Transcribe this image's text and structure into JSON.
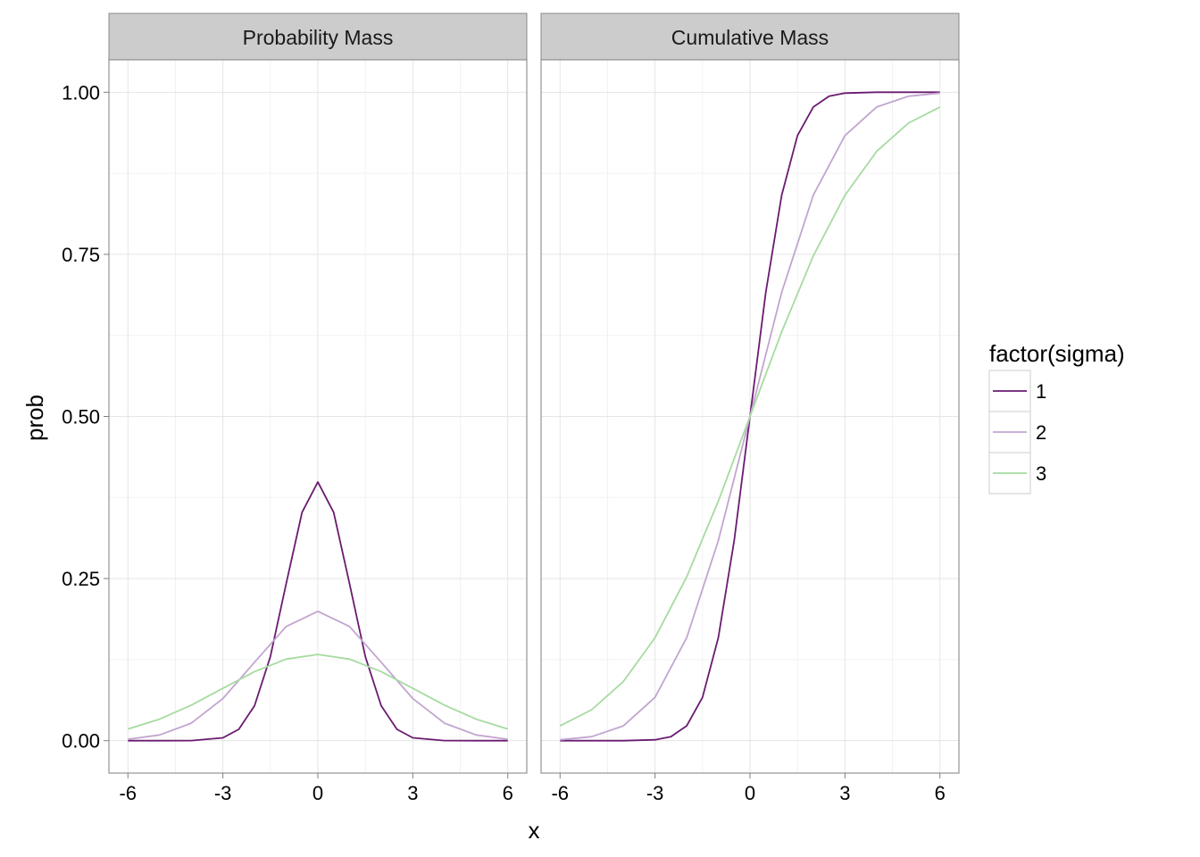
{
  "chart_data": {
    "type": "line",
    "facets": [
      {
        "title": "Probability Mass",
        "kind": "pdf",
        "series": [
          {
            "name": "1",
            "sigma": 1,
            "color": "#6a1b70",
            "x": [
              -6,
              -5,
              -4,
              -3,
              -2.5,
              -2,
              -1.5,
              -1,
              -0.5,
              0,
              0.5,
              1,
              1.5,
              2,
              2.5,
              3,
              4,
              5,
              6
            ],
            "y": [
              0.0,
              0.0,
              0.0001,
              0.0044,
              0.0175,
              0.054,
              0.1295,
              0.242,
              0.3521,
              0.3989,
              0.3521,
              0.242,
              0.1295,
              0.054,
              0.0175,
              0.0044,
              0.0001,
              0.0,
              0.0
            ]
          },
          {
            "name": "2",
            "sigma": 2,
            "color": "#c2a5cf",
            "x": [
              -6,
              -5,
              -4,
              -3,
              -2,
              -1,
              0,
              1,
              2,
              3,
              4,
              5,
              6
            ],
            "y": [
              0.0022,
              0.0088,
              0.027,
              0.0648,
              0.121,
              0.176,
              0.1995,
              0.176,
              0.121,
              0.0648,
              0.027,
              0.0088,
              0.0022
            ]
          },
          {
            "name": "3",
            "sigma": 3,
            "color": "#a6dba0",
            "x": [
              -6,
              -5,
              -4,
              -3,
              -2,
              -1,
              0,
              1,
              2,
              3,
              4,
              5,
              6
            ],
            "y": [
              0.018,
              0.0332,
              0.0547,
              0.0807,
              0.1065,
              0.1258,
              0.133,
              0.1258,
              0.1065,
              0.0807,
              0.0547,
              0.0332,
              0.018
            ]
          }
        ]
      },
      {
        "title": "Cumulative Mass",
        "kind": "cdf",
        "series": [
          {
            "name": "1",
            "sigma": 1,
            "color": "#6a1b70",
            "x": [
              -6,
              -5,
              -4,
              -3,
              -2.5,
              -2,
              -1.5,
              -1,
              -0.5,
              0,
              0.5,
              1,
              1.5,
              2,
              2.5,
              3,
              4,
              5,
              6
            ],
            "y": [
              0.0,
              0.0,
              0.0,
              0.0013,
              0.0062,
              0.0228,
              0.0668,
              0.1587,
              0.3085,
              0.5,
              0.6915,
              0.8413,
              0.9332,
              0.9772,
              0.9938,
              0.9987,
              1.0,
              1.0,
              1.0
            ]
          },
          {
            "name": "2",
            "sigma": 2,
            "color": "#c2a5cf",
            "x": [
              -6,
              -5,
              -4,
              -3,
              -2,
              -1,
              0,
              1,
              2,
              3,
              4,
              5,
              6
            ],
            "y": [
              0.0013,
              0.0062,
              0.0228,
              0.0668,
              0.1587,
              0.3085,
              0.5,
              0.6915,
              0.8413,
              0.9332,
              0.9772,
              0.9938,
              0.9987
            ]
          },
          {
            "name": "3",
            "sigma": 3,
            "color": "#a6dba0",
            "x": [
              -6,
              -5,
              -4,
              -3,
              -2,
              -1,
              0,
              1,
              2,
              3,
              4,
              5,
              6
            ],
            "y": [
              0.0228,
              0.0478,
              0.0912,
              0.1587,
              0.2525,
              0.3694,
              0.5,
              0.6306,
              0.7475,
              0.8413,
              0.9088,
              0.9522,
              0.9772
            ]
          }
        ]
      }
    ],
    "xlabel": "x",
    "ylabel": "prob",
    "x_ticks": [
      -6,
      -3,
      0,
      3,
      6
    ],
    "x_tick_labels": [
      "-6",
      "-3",
      "0",
      "3",
      "6"
    ],
    "y_ticks": [
      0,
      0.25,
      0.5,
      0.75,
      1
    ],
    "y_tick_labels": [
      "0.00",
      "0.25",
      "0.50",
      "0.75",
      "1.00"
    ],
    "xlim": [
      -6.6,
      6.6
    ],
    "ylim": [
      -0.05,
      1.05
    ],
    "grid": true,
    "legend": {
      "title": "factor(sigma)",
      "labels": [
        "1",
        "2",
        "3"
      ],
      "placement": "right"
    }
  }
}
